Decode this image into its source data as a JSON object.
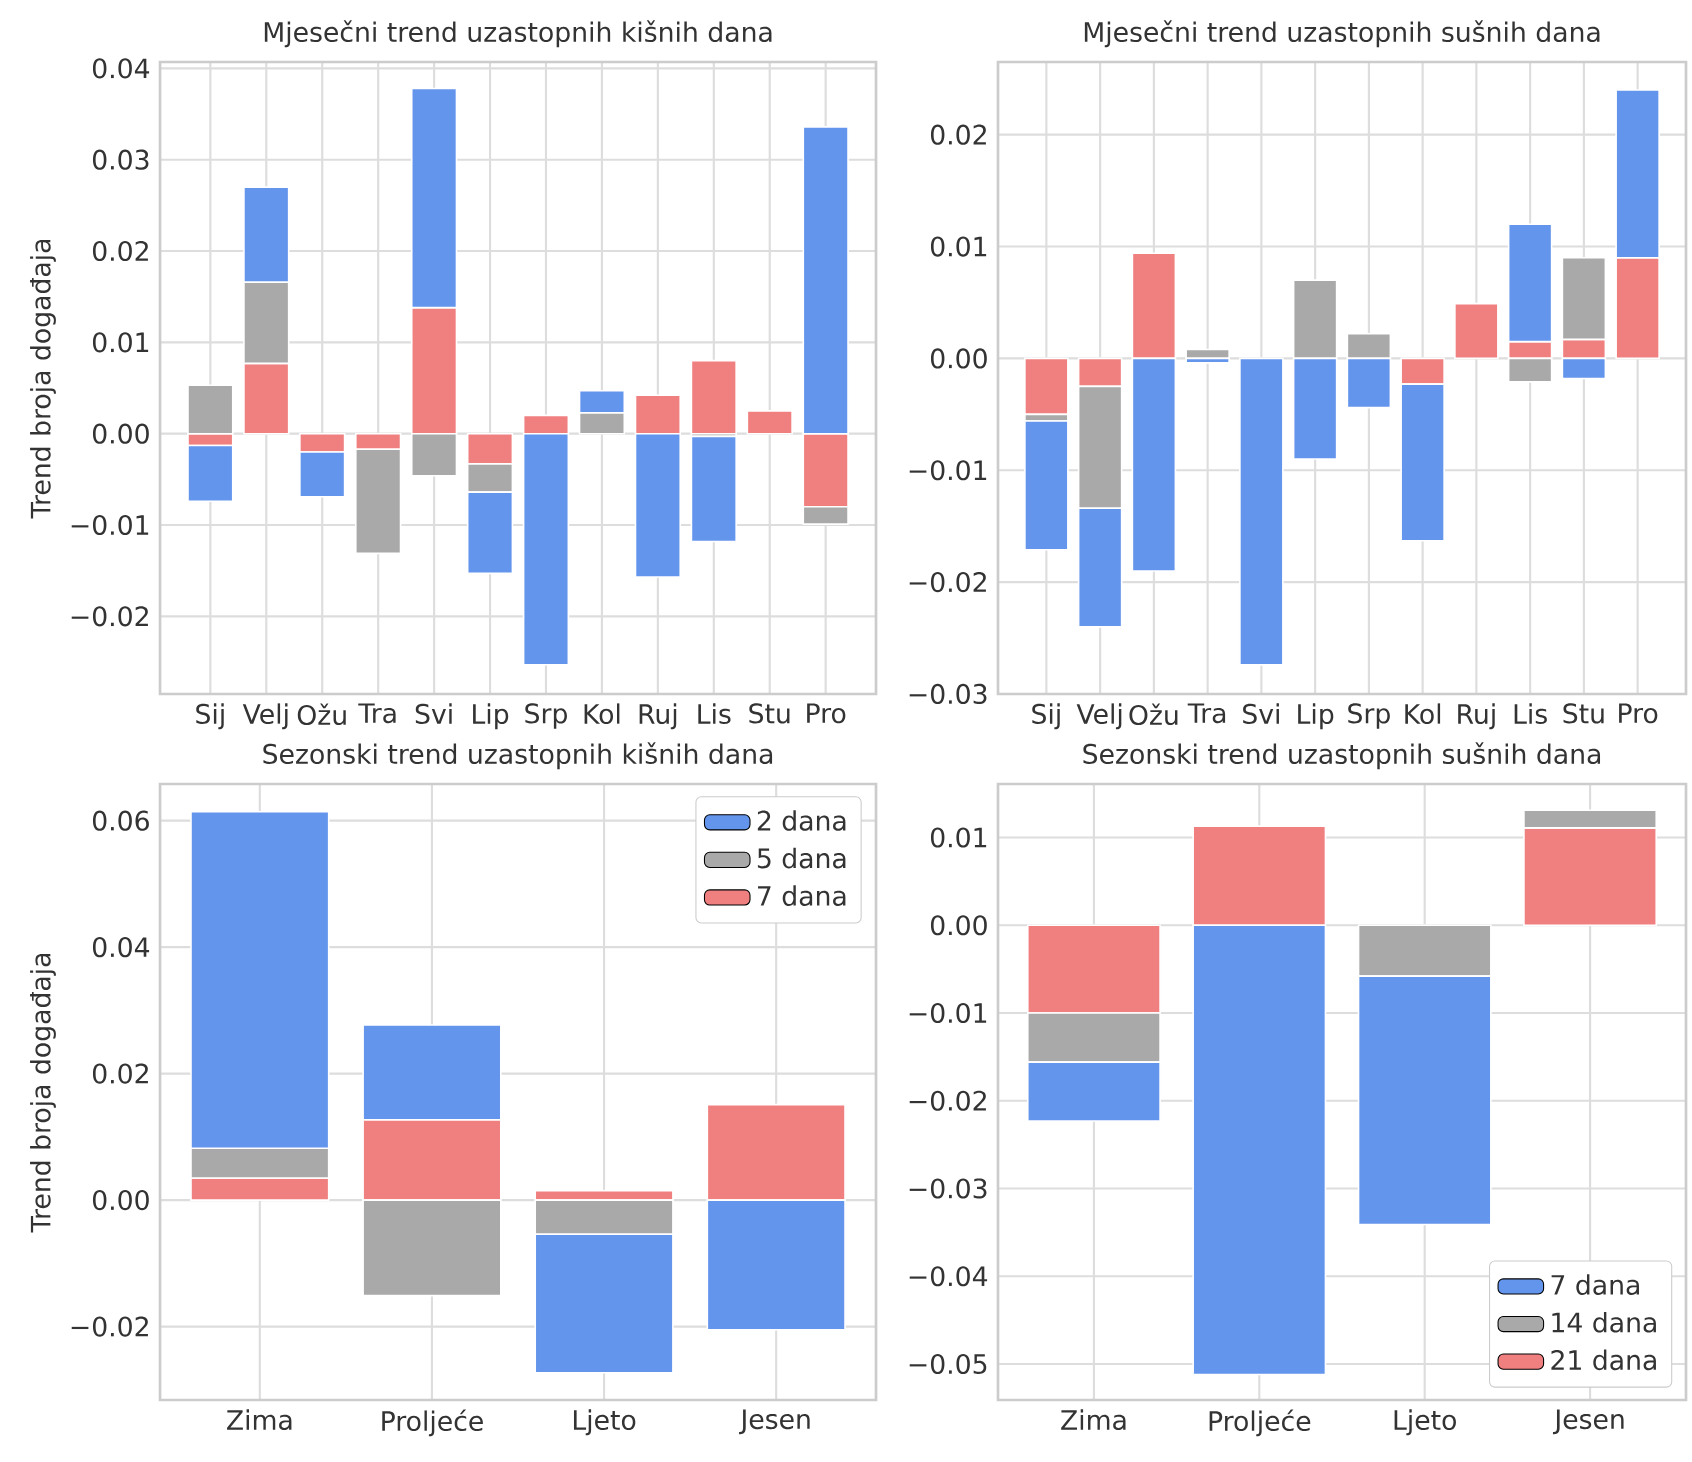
{
  "chart_data": [
    {
      "type": "bar",
      "title": "Mjesečni trend uzastopnih kišnih dana",
      "ylabel": "Trend broja događaja",
      "categories": [
        "Sij",
        "Velj",
        "Ožu",
        "Tra",
        "Svi",
        "Lip",
        "Srp",
        "Kol",
        "Ruj",
        "Lis",
        "Stu",
        "Pro"
      ],
      "stacked": true,
      "series": [
        {
          "color": "#f08080",
          "values": [
            -0.0013,
            0.0077,
            -0.002,
            -0.0017,
            0.0138,
            -0.0033,
            0.002,
            null,
            0.0042,
            0.008,
            0.0025,
            -0.008
          ]
        },
        {
          "color": "#a9a9a9",
          "values": [
            0.0053,
            0.0089,
            null,
            -0.0114,
            -0.0046,
            -0.0031,
            null,
            0.0023,
            null,
            -0.0003,
            null,
            -0.0019
          ]
        },
        {
          "color": "#6495ed",
          "values": [
            -0.0061,
            0.0104,
            -0.0049,
            null,
            0.024,
            -0.0089,
            -0.0253,
            0.0024,
            -0.0157,
            -0.0115,
            null,
            0.0336
          ]
        }
      ],
      "ylim": [
        -0.0285,
        0.0407
      ],
      "yticks": [
        {
          "value": -0.02,
          "label": "−0.02"
        },
        {
          "value": -0.01,
          "label": "−0.01"
        },
        {
          "value": 0,
          "label": "0.00"
        },
        {
          "value": 0.01,
          "label": "0.01"
        },
        {
          "value": 0.02,
          "label": "0.02"
        },
        {
          "value": 0.03,
          "label": "0.03"
        },
        {
          "value": 0.04,
          "label": "0.04"
        }
      ],
      "grid": true
    },
    {
      "type": "bar",
      "title": "Mjesečni trend uzastopnih sušnih dana",
      "categories": [
        "Sij",
        "Velj",
        "Ožu",
        "Tra",
        "Svi",
        "Lip",
        "Srp",
        "Kol",
        "Ruj",
        "Lis",
        "Stu",
        "Pro"
      ],
      "stacked": true,
      "series": [
        {
          "color": "#f08080",
          "values": [
            -0.005,
            -0.0025,
            0.0094,
            null,
            null,
            null,
            null,
            -0.0023,
            0.0049,
            0.0015,
            0.0017,
            0.009
          ]
        },
        {
          "color": "#a9a9a9",
          "values": [
            -0.0006,
            -0.0109,
            null,
            0.0008,
            null,
            0.007,
            0.0022,
            null,
            null,
            -0.0021,
            0.0073,
            null
          ]
        },
        {
          "color": "#6495ed",
          "values": [
            -0.0115,
            -0.0106,
            -0.019,
            -0.0004,
            -0.0274,
            -0.009,
            -0.0044,
            -0.014,
            null,
            0.0105,
            -0.0018,
            0.015
          ]
        }
      ],
      "ylim": [
        -0.03,
        0.0265
      ],
      "yticks": [
        {
          "value": -0.03,
          "label": "−0.03"
        },
        {
          "value": -0.02,
          "label": "−0.02"
        },
        {
          "value": -0.01,
          "label": "−0.01"
        },
        {
          "value": 0,
          "label": "0.00"
        },
        {
          "value": 0.01,
          "label": "0.01"
        },
        {
          "value": 0.02,
          "label": "0.02"
        }
      ],
      "grid": true
    },
    {
      "type": "bar",
      "title": "Sezonski trend uzastopnih kišnih dana",
      "ylabel": "Trend broja događaja",
      "categories": [
        "Zima",
        "Proljeće",
        "Ljeto",
        "Jesen"
      ],
      "stacked": true,
      "series": [
        {
          "name": "7 dana",
          "color": "#f08080",
          "values": [
            0.0035,
            0.0127,
            0.0015,
            0.0151
          ]
        },
        {
          "name": "5 dana",
          "color": "#a9a9a9",
          "values": [
            0.0047,
            -0.0151,
            -0.0054,
            null
          ]
        },
        {
          "name": "2 dana",
          "color": "#6495ed",
          "values": [
            0.0532,
            0.015,
            -0.0219,
            -0.0205
          ]
        }
      ],
      "ylim": [
        -0.0316,
        0.0658
      ],
      "yticks": [
        {
          "value": -0.02,
          "label": "−0.02"
        },
        {
          "value": 0,
          "label": "0.00"
        },
        {
          "value": 0.02,
          "label": "0.02"
        },
        {
          "value": 0.04,
          "label": "0.04"
        },
        {
          "value": 0.06,
          "label": "0.06"
        }
      ],
      "grid": true,
      "legend": "top right"
    },
    {
      "type": "bar",
      "title": "Sezonski trend uzastopnih sušnih dana",
      "categories": [
        "Zima",
        "Proljeće",
        "Ljeto",
        "Jesen"
      ],
      "stacked": true,
      "series": [
        {
          "name": "21 dana",
          "color": "#f08080",
          "values": [
            -0.01,
            0.0113,
            null,
            0.0111
          ]
        },
        {
          "name": "14 dana",
          "color": "#a9a9a9",
          "values": [
            -0.0056,
            null,
            -0.0058,
            0.002
          ]
        },
        {
          "name": "7 dana",
          "color": "#6495ed",
          "values": [
            -0.0067,
            -0.0512,
            -0.0283,
            null
          ]
        }
      ],
      "ylim": [
        -0.0541,
        0.0161
      ],
      "yticks": [
        {
          "value": -0.05,
          "label": "−0.05"
        },
        {
          "value": -0.04,
          "label": "−0.04"
        },
        {
          "value": -0.03,
          "label": "−0.03"
        },
        {
          "value": -0.02,
          "label": "−0.02"
        },
        {
          "value": -0.01,
          "label": "−0.01"
        },
        {
          "value": 0,
          "label": "0.00"
        },
        {
          "value": 0.01,
          "label": "0.01"
        }
      ],
      "grid": true,
      "legend": "bottom right"
    }
  ]
}
